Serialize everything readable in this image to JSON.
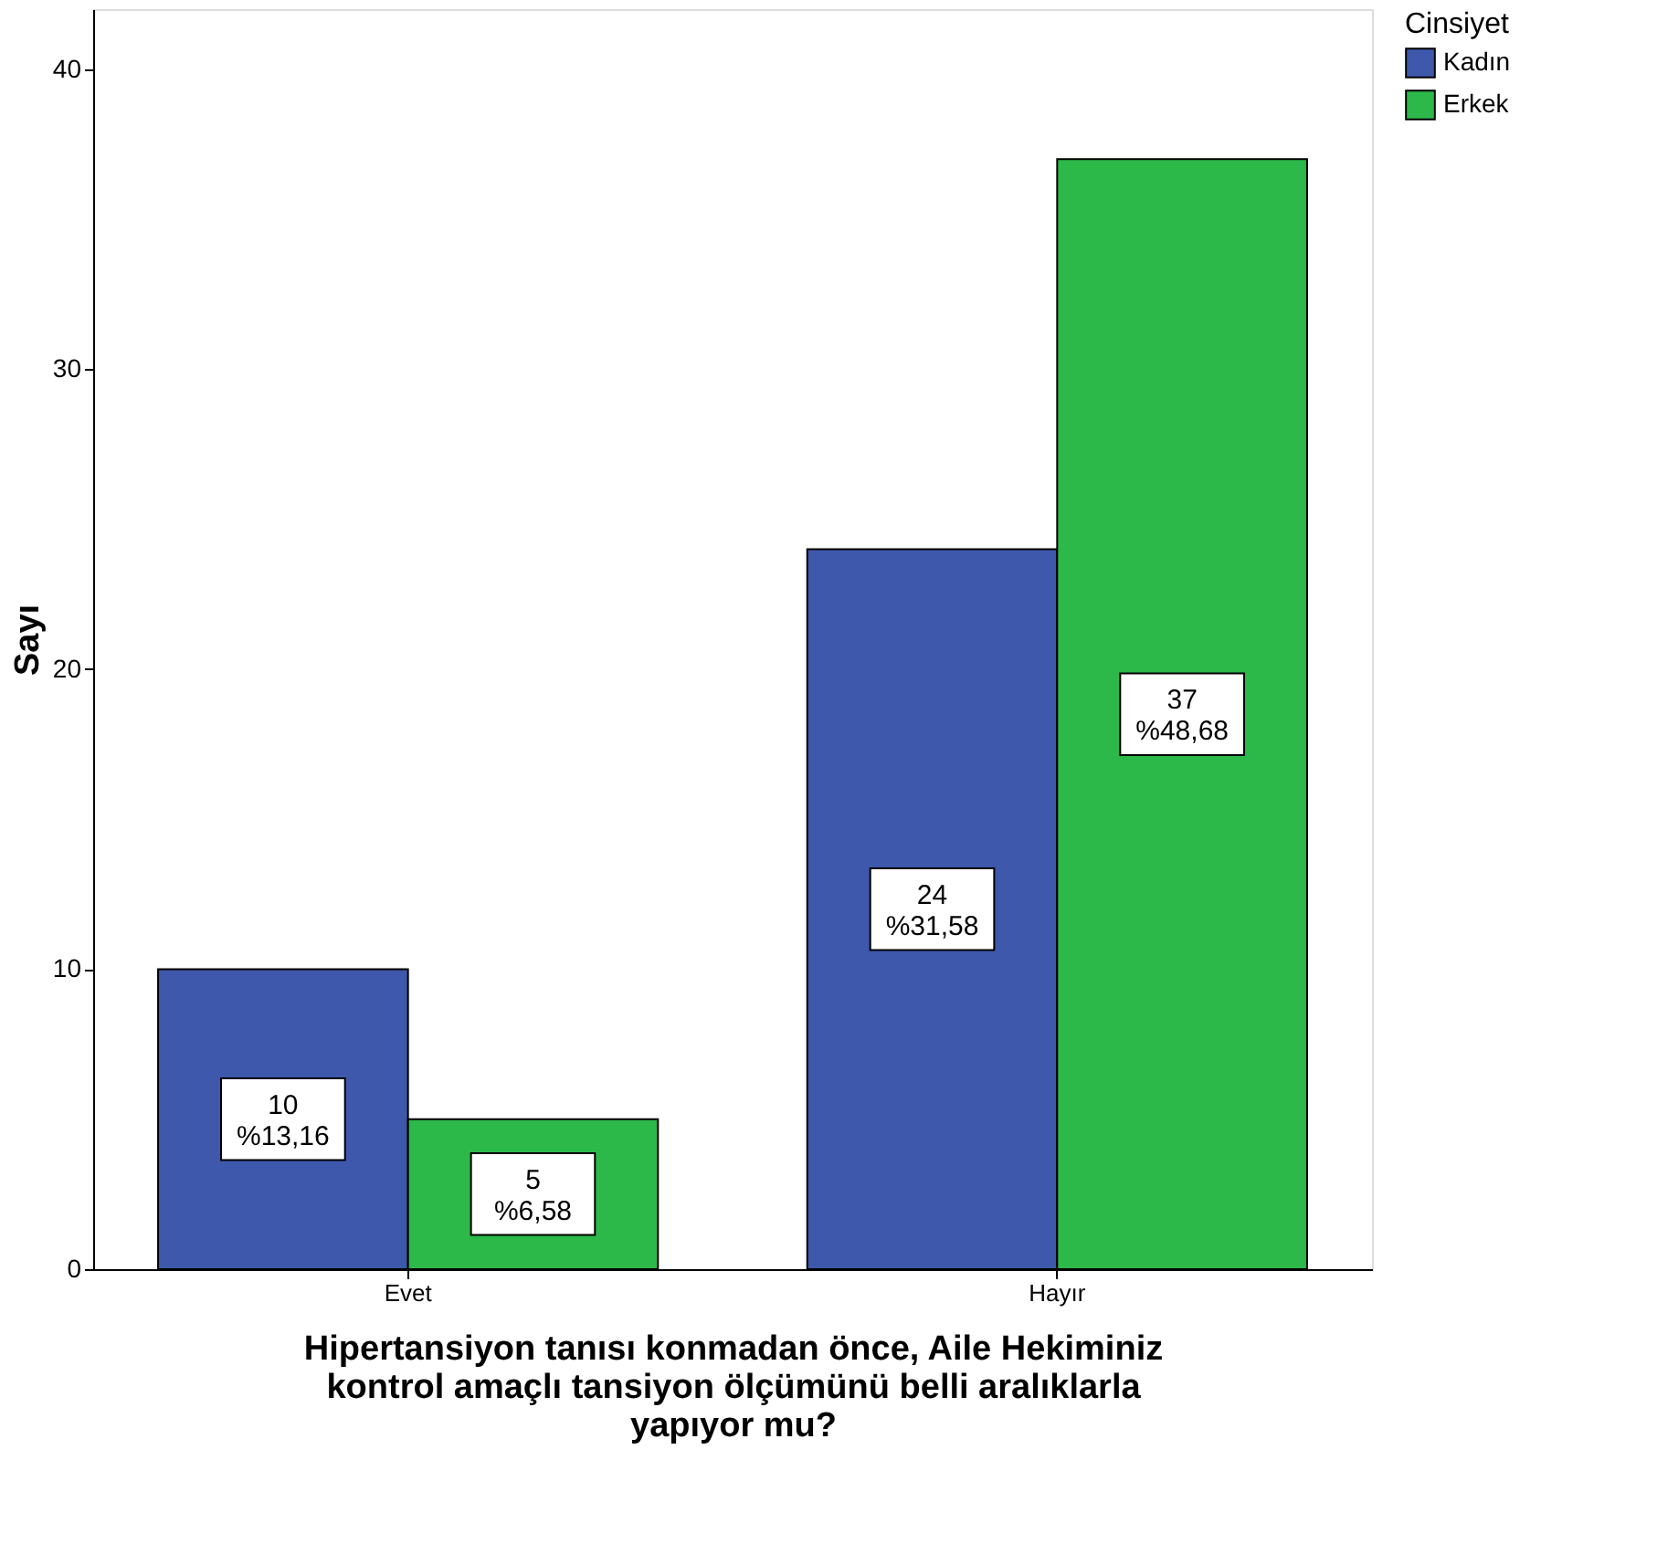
{
  "chart_data": {
    "type": "bar",
    "categories": [
      "Evet",
      "Hayır"
    ],
    "series": [
      {
        "name": "Kadın",
        "color": "#3e58ac",
        "values": [
          10,
          24
        ],
        "value_labels": [
          "10\n%13,16",
          "24\n%31,58"
        ]
      },
      {
        "name": "Erkek",
        "color": "#2db84a",
        "values": [
          5,
          37
        ],
        "value_labels": [
          "5\n%6,58",
          "37\n%48,68"
        ]
      }
    ],
    "xlabel": "Hipertansiyon tanısı konmadan önce, Aile Hekiminiz kontrol amaçlı tansiyon ölçümünü belli aralıklarla yapıyor mu?",
    "ylabel": "Sayı",
    "legend_title": "Cinsiyet",
    "legend": "top right",
    "ylim": [
      0,
      42
    ],
    "yticks": [
      0,
      10,
      20,
      30,
      40
    ],
    "grid": false
  }
}
